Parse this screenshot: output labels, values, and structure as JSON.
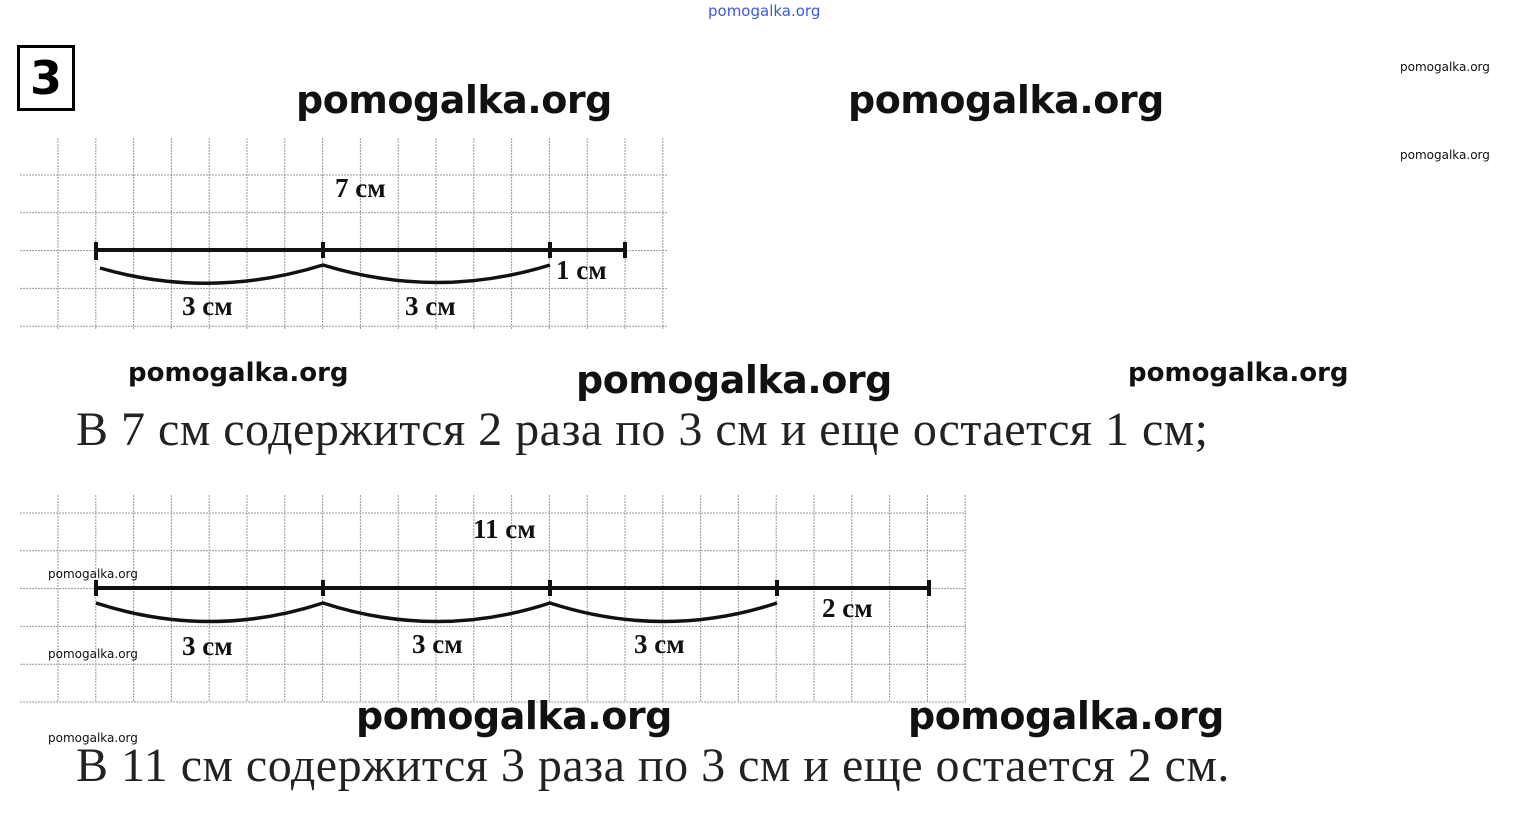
{
  "watermarks": {
    "top": "pomogalka.org",
    "large": "pomogalka.org",
    "medium": "pomogalka.org",
    "small": "pomogalka.org"
  },
  "task_number": "3",
  "figure1": {
    "total_label": "7 см",
    "part_labels": [
      "3 см",
      "3 см"
    ],
    "remainder_label": "1 см"
  },
  "answer1": "В 7 см содержится 2 раза по 3 см и еще остается 1 см;",
  "figure2": {
    "total_label": "11 см",
    "part_labels": [
      "3 см",
      "3 см",
      "3 см"
    ],
    "remainder_label": "2 см"
  },
  "answer2": "В 11 см содержится 3 раза по 3 см и еще остается 2 см."
}
